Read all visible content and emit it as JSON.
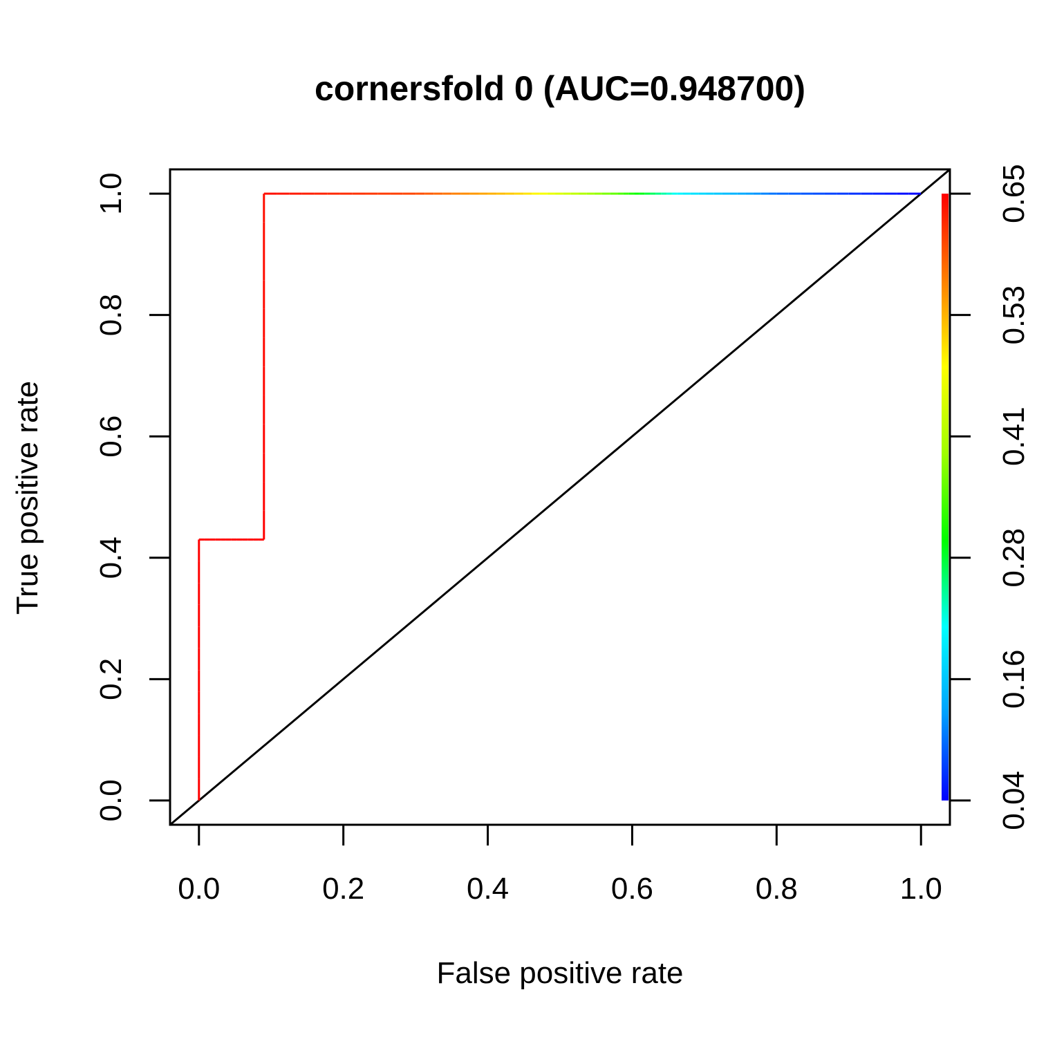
{
  "chart_data": {
    "type": "line",
    "title": "cornersfold 0 (AUC=0.948700)",
    "xlabel": "False positive rate",
    "ylabel": "True positive rate",
    "xlim": [
      -0.04,
      1.04
    ],
    "ylim": [
      -0.04,
      1.04
    ],
    "x_ticks": [
      "0.0",
      "0.2",
      "0.4",
      "0.6",
      "0.8",
      "1.0"
    ],
    "y_ticks": [
      "0.0",
      "0.2",
      "0.4",
      "0.6",
      "0.8",
      "1.0"
    ],
    "colorbar_ticks": [
      "0.04",
      "0.16",
      "0.28",
      "0.41",
      "0.53",
      "0.65"
    ],
    "colorbar_range": [
      0.04,
      0.65
    ],
    "series": [
      {
        "points": [
          {
            "x": 0.0,
            "y": 0.0,
            "cutoff": 0.65
          },
          {
            "x": 0.0,
            "y": 0.43,
            "cutoff": 0.65
          },
          {
            "x": 0.09,
            "y": 0.43,
            "cutoff": 0.65
          },
          {
            "x": 0.09,
            "y": 1.0,
            "cutoff": 0.64
          },
          {
            "x": 0.3,
            "y": 1.0,
            "cutoff": 0.6
          },
          {
            "x": 0.45,
            "y": 1.0,
            "cutoff": 0.5
          },
          {
            "x": 0.58,
            "y": 1.0,
            "cutoff": 0.35
          },
          {
            "x": 0.67,
            "y": 1.0,
            "cutoff": 0.2
          },
          {
            "x": 0.8,
            "y": 1.0,
            "cutoff": 0.1
          },
          {
            "x": 1.0,
            "y": 1.0,
            "cutoff": 0.04
          }
        ]
      }
    ],
    "reference_line": {
      "from": [
        -0.04,
        -0.04
      ],
      "to": [
        1.04,
        1.04
      ],
      "color": "#000000"
    },
    "colors": {
      "colorbar": [
        "#0000ff",
        "#00a0ff",
        "#00ffff",
        "#00ff00",
        "#a0ff00",
        "#ffff00",
        "#ff8000",
        "#ff0000"
      ],
      "frame": "#000000"
    },
    "grid": false
  }
}
